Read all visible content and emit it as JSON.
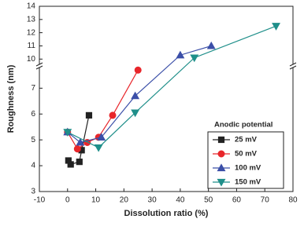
{
  "chart_data": {
    "type": "line",
    "x_label": "Dissolution ratio (%)",
    "y_label": "Roughness (nm)",
    "legend_title": "Anodic potential",
    "xlim": [
      -10,
      80
    ],
    "xticks": [
      -10,
      0,
      10,
      20,
      30,
      40,
      50,
      60,
      70,
      80
    ],
    "ylim": [
      3,
      14
    ],
    "ybreak": [
      7.8,
      9.6
    ],
    "yticks": [
      3,
      4,
      5,
      6,
      7,
      10,
      11,
      12,
      13,
      14
    ],
    "series": [
      {
        "name": "25 mV",
        "color": "#222222",
        "marker": "square",
        "x": [
          0.3,
          1.1,
          4.2,
          5,
          7.6
        ],
        "values": [
          4.2,
          4.05,
          4.15,
          4.6,
          5.95
        ]
      },
      {
        "name": "50 mV",
        "color": "#e8262b",
        "marker": "circle",
        "x": [
          0,
          3.5,
          7,
          11,
          16,
          25
        ],
        "values": [
          5.3,
          4.65,
          4.9,
          5.1,
          5.95,
          7.7
        ]
      },
      {
        "name": "100 mV",
        "color": "#3b4fa8",
        "marker": "triangle-up",
        "x": [
          0,
          4.5,
          12,
          24,
          40,
          51
        ],
        "values": [
          5.3,
          4.9,
          5.1,
          6.7,
          10.3,
          11.0
        ]
      },
      {
        "name": "150 mV",
        "color": "#1f8f8a",
        "marker": "triangle-down",
        "x": [
          0,
          11,
          24,
          45,
          74
        ],
        "values": [
          5.3,
          4.7,
          6.05,
          10.1,
          12.5
        ]
      }
    ]
  }
}
